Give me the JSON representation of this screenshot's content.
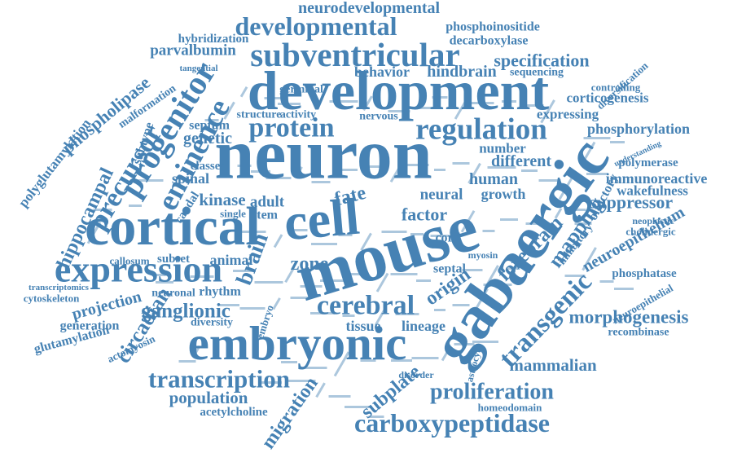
{
  "word_cloud": {
    "color": "#4682b4",
    "words": [
      "neurodevelopmental",
      "developmental",
      "phosphoinositide",
      "hybridization",
      "decarboxylase",
      "parvalbumin",
      "subventricular",
      "specification",
      "tangential",
      "behavior",
      "hindbrain",
      "sequencing",
      "diversification",
      "germinal",
      "development",
      "phospholipase",
      "progenitor",
      "malformation",
      "corticogenesis",
      "controlling",
      "protein",
      "regulation",
      "expressing",
      "phosphorylation",
      "subtype",
      "eminence",
      "neuron",
      "genetic",
      "septum",
      "structure",
      "activity",
      "nervous",
      "number",
      "different",
      "understanding",
      "polymerase",
      "gabaergic",
      "polyglutamylation",
      "hippocampal",
      "precursor",
      "immunoreactive",
      "human",
      "wakefulness",
      "olfactory",
      "mouse",
      "cell",
      "cortical",
      "spinal",
      "classes",
      "kinase",
      "adult",
      "fate",
      "neural",
      "growth",
      "suppressor",
      "factor",
      "expression",
      "stem",
      "cord",
      "caudal",
      "single",
      "neuroepithelium",
      "forebrain",
      "mapping",
      "neoplastic",
      "inhibitory",
      "cholinergic",
      "callosum",
      "subset",
      "animal",
      "zone",
      "brain",
      "origin",
      "septal",
      "myosin",
      "phosphatase",
      "rhythm",
      "neuronal",
      "ganglionic",
      "cerebral",
      "transgenic",
      "projection",
      "cytoskeleton",
      "transcriptomics",
      "circadian",
      "diversity",
      "embryo",
      "tissue",
      "lineage",
      "neuroepithelial",
      "generation",
      "morphogenesis",
      "glutamylation",
      "recombinase",
      "embryonic",
      "actomyosin",
      "mammalian",
      "transcription",
      "disorder",
      "proliferation",
      "astrocyte",
      "subplate",
      "population",
      "acetylcholine",
      "homeodomain",
      "migration",
      "carboxypeptidase"
    ]
  }
}
